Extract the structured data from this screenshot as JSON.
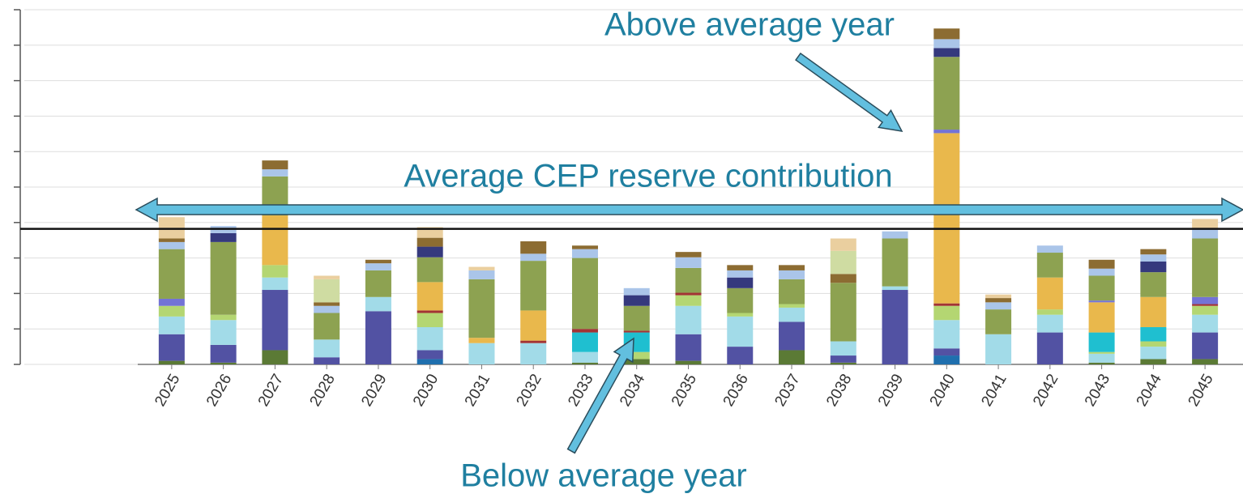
{
  "chart_data": {
    "type": "bar",
    "stacked": true,
    "categories": [
      "2025",
      "2026",
      "2027",
      "2028",
      "2029",
      "2030",
      "2031",
      "2032",
      "2033",
      "2034",
      "2035",
      "2036",
      "2037",
      "2038",
      "2039",
      "2040",
      "2041",
      "2042",
      "2043",
      "2044",
      "2045"
    ],
    "series": [
      {
        "color": "#5b7a35",
        "values": [
          0.1,
          0.05,
          0.4,
          0,
          0,
          0,
          0,
          0,
          0.05,
          0.15,
          0.1,
          0,
          0.4,
          0.05,
          0,
          0,
          0,
          0,
          0.05,
          0.15,
          0.15
        ]
      },
      {
        "color": "#1f6fae",
        "values": [
          0,
          0,
          0,
          0,
          0,
          0.15,
          0,
          0,
          0,
          0,
          0,
          0,
          0,
          0,
          0,
          0.25,
          0,
          0,
          0,
          0,
          0
        ]
      },
      {
        "color": "#5252a3",
        "values": [
          0.75,
          0.5,
          1.7,
          0.2,
          1.5,
          0.25,
          0,
          0,
          0,
          0,
          0.75,
          0.5,
          0.8,
          0.2,
          2.1,
          0.2,
          0,
          0.9,
          0,
          0,
          0.75
        ]
      },
      {
        "color": "#a2dbe8",
        "values": [
          0.5,
          0.7,
          0.35,
          0.5,
          0.4,
          0.65,
          0.6,
          0.6,
          0.3,
          0,
          0.8,
          0.85,
          0.4,
          0.4,
          0.1,
          0.8,
          0.85,
          0.5,
          0.25,
          0.35,
          0.5
        ]
      },
      {
        "color": "#b4d672",
        "values": [
          0.3,
          0.15,
          0.35,
          0,
          0,
          0.4,
          0,
          0,
          0,
          0.2,
          0.3,
          0.1,
          0.1,
          0,
          0,
          0.4,
          0,
          0.15,
          0.05,
          0.15,
          0.25
        ]
      },
      {
        "color": "#1fbfd0",
        "values": [
          0,
          0,
          0,
          0,
          0,
          0,
          0,
          0,
          0.55,
          0.55,
          0,
          0,
          0,
          0,
          0,
          0,
          0,
          0,
          0.55,
          0.4,
          0
        ]
      },
      {
        "color": "#a23434",
        "values": [
          0,
          0,
          0,
          0,
          0,
          0.07,
          0,
          0.07,
          0.1,
          0.05,
          0.07,
          0,
          0,
          0,
          0,
          0.07,
          0,
          0,
          0,
          0,
          0.05
        ]
      },
      {
        "color": "#e9b84c",
        "values": [
          0,
          0,
          1.4,
          0,
          0,
          0.8,
          0.15,
          0.85,
          0,
          0,
          0,
          0,
          0,
          0,
          0,
          4.8,
          0,
          0.9,
          0.85,
          0.85,
          0
        ]
      },
      {
        "color": "#7373d6",
        "values": [
          0.2,
          0,
          0,
          0,
          0,
          0,
          0,
          0,
          0,
          0,
          0,
          0,
          0,
          0,
          0,
          0.1,
          0,
          0,
          0.05,
          0,
          0.2
        ]
      },
      {
        "color": "#8da251",
        "values": [
          1.4,
          2.05,
          1.1,
          0.75,
          0.75,
          0.7,
          1.65,
          1.4,
          2.0,
          0.7,
          0.7,
          0.7,
          0.7,
          1.65,
          1.35,
          2.05,
          0.7,
          0.7,
          0.7,
          0.7,
          1.65
        ]
      },
      {
        "color": "#35397d",
        "values": [
          0,
          0.25,
          0,
          0,
          0,
          0.3,
          0,
          0,
          0,
          0.3,
          0,
          0.3,
          0,
          0,
          0,
          0.25,
          0,
          0,
          0,
          0.3,
          0
        ]
      },
      {
        "color": "#aac5e9",
        "values": [
          0.2,
          0.2,
          0.2,
          0.2,
          0.2,
          0,
          0.25,
          0.2,
          0.25,
          0.2,
          0.3,
          0.2,
          0.25,
          0,
          0.2,
          0.25,
          0.2,
          0.2,
          0.2,
          0.2,
          0.25
        ]
      },
      {
        "color": "#8c6c32",
        "values": [
          0.1,
          0,
          0.25,
          0.1,
          0.1,
          0.25,
          0,
          0.35,
          0.1,
          0,
          0.15,
          0.15,
          0.15,
          0.25,
          0,
          0.3,
          0.12,
          0,
          0.25,
          0.15,
          0
        ]
      },
      {
        "color": "#cfdca2",
        "values": [
          0,
          0,
          0,
          0.65,
          0,
          0,
          0,
          0,
          0,
          0,
          0,
          0,
          0,
          0.65,
          0,
          0,
          0,
          0,
          0,
          0,
          0
        ]
      },
      {
        "color": "#eacf9f",
        "values": [
          0.6,
          0,
          0,
          0.1,
          0,
          0.3,
          0.1,
          0,
          0,
          0,
          0,
          0,
          0,
          0.35,
          0,
          0,
          0.1,
          0,
          0,
          0,
          0.3
        ]
      }
    ],
    "ylim": [
      0,
      10
    ],
    "yticks": [
      0,
      1,
      2,
      3,
      4,
      5,
      6,
      7,
      8,
      9,
      10
    ],
    "grid": true,
    "average": 3.82,
    "annotations": [
      "Above average year",
      "Average CEP reserve contribution",
      "Below average year"
    ]
  }
}
